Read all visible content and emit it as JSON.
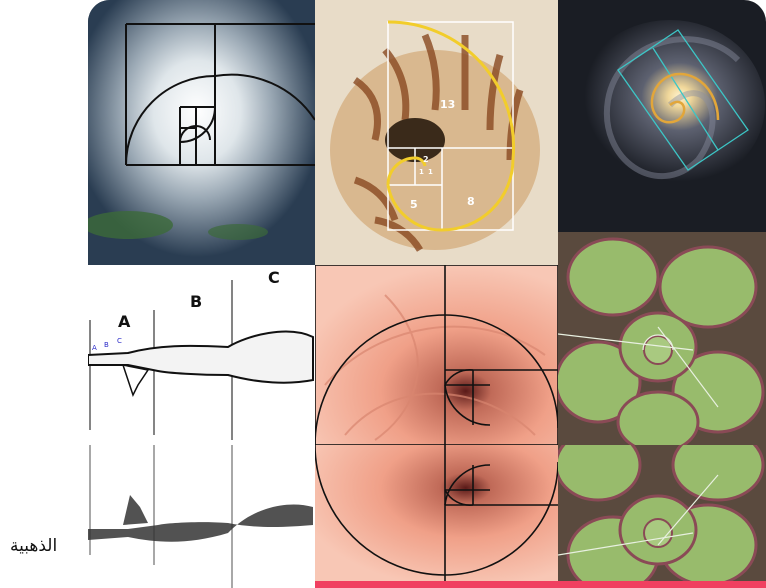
{
  "caption": "الذهبية",
  "shell": {
    "square_labels": [
      "13",
      "8",
      "5",
      "2",
      "1",
      "1"
    ]
  },
  "arm": {
    "section_labels": [
      "A",
      "B",
      "C"
    ],
    "small_labels": [
      "A",
      "B",
      "C"
    ]
  },
  "colors": {
    "hurricane_ocean": "#2a3d52",
    "hurricane_cloud": "#e9eef2",
    "shell_gold": "#f2cd2b",
    "shell_base": "#e8dcc8",
    "galaxy_bg": "#1a1d24",
    "galaxy_spiral": "#e2a63a",
    "galaxy_box": "#3cc6c6",
    "rose": "#f0a088",
    "succulent": "#98bb6c",
    "succulent_edge": "#8a4a56"
  }
}
